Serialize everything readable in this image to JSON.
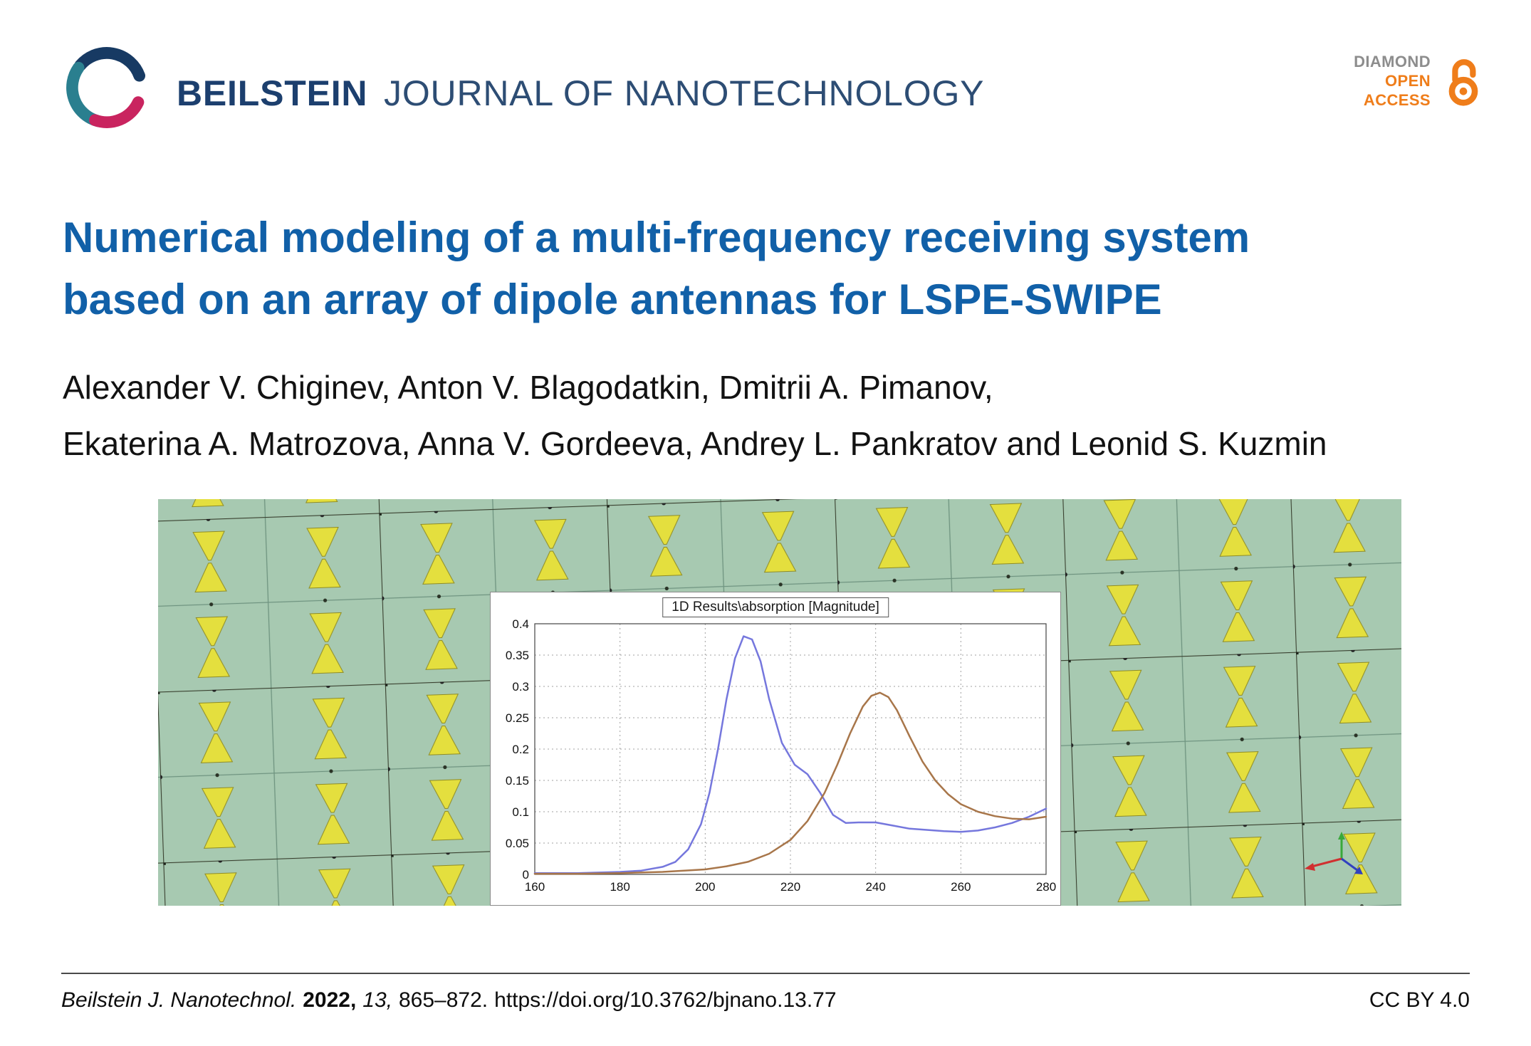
{
  "header": {
    "journal_bold": "BEILSTEIN",
    "journal_rest": "JOURNAL OF NANOTECHNOLOGY",
    "open_access": {
      "diamond": "DIAMOND",
      "open": "OPEN",
      "access": "ACCESS"
    }
  },
  "article": {
    "title_line1": "Numerical modeling of a multi-frequency receiving system",
    "title_line2": "based on an array of dipole antennas for LSPE-SWIPE",
    "authors_line1": "Alexander V. Chiginev, Anton V. Blagodatkin, Dmitrii A. Pimanov,",
    "authors_line2": "Ekaterina A. Matrozova, Anna V. Gordeeva, Andrey L. Pankratov and Leonid S. Kuzmin"
  },
  "chart_data": {
    "type": "line",
    "title": "1D Results\\absorption [Magnitude]",
    "xlabel": "",
    "ylabel": "",
    "xlim": [
      160,
      280
    ],
    "ylim": [
      0,
      0.4
    ],
    "x_ticks": [
      160,
      180,
      200,
      220,
      240,
      260,
      280
    ],
    "y_ticks": [
      0,
      0.05,
      0.1,
      0.15,
      0.2,
      0.25,
      0.3,
      0.35,
      0.4
    ],
    "grid": "dotted",
    "legend_position": "none",
    "series": [
      {
        "name": "absorption-curve-1",
        "color": "#7577dd",
        "x": [
          160,
          165,
          170,
          175,
          180,
          185,
          190,
          193,
          196,
          199,
          201,
          203,
          205,
          207,
          209,
          211,
          213,
          215,
          218,
          221,
          224,
          227,
          230,
          233,
          236,
          240,
          244,
          248,
          252,
          256,
          260,
          264,
          268,
          272,
          276,
          280
        ],
        "y": [
          0.002,
          0.002,
          0.002,
          0.003,
          0.004,
          0.006,
          0.012,
          0.02,
          0.04,
          0.08,
          0.13,
          0.2,
          0.28,
          0.345,
          0.38,
          0.375,
          0.34,
          0.28,
          0.21,
          0.175,
          0.16,
          0.13,
          0.095,
          0.082,
          0.083,
          0.083,
          0.078,
          0.073,
          0.071,
          0.069,
          0.068,
          0.07,
          0.075,
          0.082,
          0.092,
          0.105
        ]
      },
      {
        "name": "absorption-curve-2",
        "color": "#a8764a",
        "x": [
          160,
          170,
          180,
          190,
          195,
          200,
          205,
          210,
          215,
          220,
          224,
          228,
          231,
          234,
          237,
          239,
          241,
          243,
          245,
          248,
          251,
          254,
          257,
          260,
          264,
          268,
          272,
          276,
          280
        ],
        "y": [
          0.001,
          0.001,
          0.002,
          0.004,
          0.006,
          0.008,
          0.013,
          0.02,
          0.033,
          0.055,
          0.085,
          0.13,
          0.175,
          0.225,
          0.268,
          0.285,
          0.29,
          0.283,
          0.262,
          0.22,
          0.18,
          0.15,
          0.128,
          0.112,
          0.1,
          0.093,
          0.089,
          0.088,
          0.092
        ]
      }
    ]
  },
  "footer": {
    "journal": "Beilstein J. Nanotechnol.",
    "year": "2022,",
    "volume": "13,",
    "pages": "865–872.",
    "doi": "https://doi.org/10.3762/bjnano.13.77",
    "license": "CC BY 4.0"
  },
  "colors": {
    "title_blue": "#1160a8",
    "journal_navy": "#1c3f6e",
    "accent_orange": "#ef7d1a",
    "figure_green": "#a7c9b1",
    "antenna_yellow": "#e4df3e"
  }
}
